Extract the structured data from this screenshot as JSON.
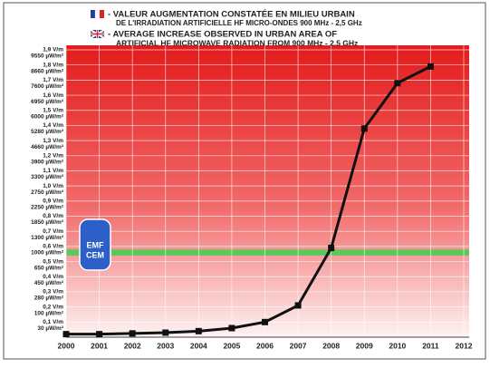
{
  "chart_data": {
    "type": "line",
    "title_fr": [
      "- VALEUR AUGMENTATION CONSTATÉE EN MILIEU URBAIN",
      "DE L'IRRADIATION ARTIFICIELLE HF MICRO-ONDES 900 MHz - 2,5 GHz"
    ],
    "title_en": [
      "- AVERAGE INCREASE OBSERVED IN URBAN AREA OF",
      "ARTIFICIAL HF MICROWAVE RADIATION FROM 900 MHz - 2.5 GHz"
    ],
    "x": [
      2000,
      2001,
      2002,
      2003,
      2004,
      2005,
      2006,
      2007,
      2008,
      2009,
      2010,
      2011
    ],
    "series": [
      {
        "name": "V/m",
        "color": "#111111",
        "values": [
          0.02,
          0.02,
          0.025,
          0.03,
          0.04,
          0.06,
          0.1,
          0.21,
          0.59,
          1.38,
          1.68,
          1.79
        ]
      }
    ],
    "xlim": [
      2000,
      2012
    ],
    "xticks": [
      2000,
      2001,
      2002,
      2003,
      2004,
      2005,
      2006,
      2007,
      2008,
      2009,
      2010,
      2011,
      2012
    ],
    "ylim": [
      0,
      1.9
    ],
    "yticks": [
      {
        "value": 1.9,
        "label": "1,9 V/m"
      },
      {
        "value": 1.8,
        "label": "1,8 V/m"
      },
      {
        "value": 1.7,
        "label": "1,7 V/m"
      },
      {
        "value": 1.6,
        "label": "1,6 V/m"
      },
      {
        "value": 1.5,
        "label": "1,5 V/m"
      },
      {
        "value": 1.4,
        "label": "1,4 V/m"
      },
      {
        "value": 1.3,
        "label": "1,3 V/m"
      },
      {
        "value": 1.2,
        "label": "1,2 V/m"
      },
      {
        "value": 1.1,
        "label": "1,1 V/m"
      },
      {
        "value": 1.0,
        "label": "1,0 V/m"
      },
      {
        "value": 0.9,
        "label": "0,9 V/m"
      },
      {
        "value": 0.8,
        "label": "0,8 V/m"
      },
      {
        "value": 0.7,
        "label": "0,7 V/m"
      },
      {
        "value": 0.6,
        "label": "0,6 V/m"
      },
      {
        "value": 0.5,
        "label": "0,5 V/m"
      },
      {
        "value": 0.4,
        "label": "0,4 V/m"
      },
      {
        "value": 0.3,
        "label": "0,3 V/m"
      },
      {
        "value": 0.2,
        "label": "0,2 V/m"
      },
      {
        "value": 0.1,
        "label": "0,1 V/m"
      }
    ],
    "ytick_power_labels": [
      "9550 µW/m²",
      "8660 µW/m²",
      "7600 µW/m²",
      "6950 µW/m²",
      "6000 µW/m²",
      "5280 µW/m²",
      "4660 µW/m²",
      "3900 µW/m²",
      "3300 µW/m²",
      "2750 µW/m²",
      "2250 µW/m²",
      "1850 µW/m²",
      "1300 µW/m²",
      "1000 µW/m²",
      "650 µW/m²",
      "450 µW/m²",
      "280 µW/m²",
      "100 µW/m²",
      "30 µW/m²"
    ],
    "band": {
      "range": [
        0.54,
        0.58
      ],
      "color": "#5cc85c"
    },
    "grid": true,
    "logo": [
      "EMF",
      "CEM"
    ]
  }
}
